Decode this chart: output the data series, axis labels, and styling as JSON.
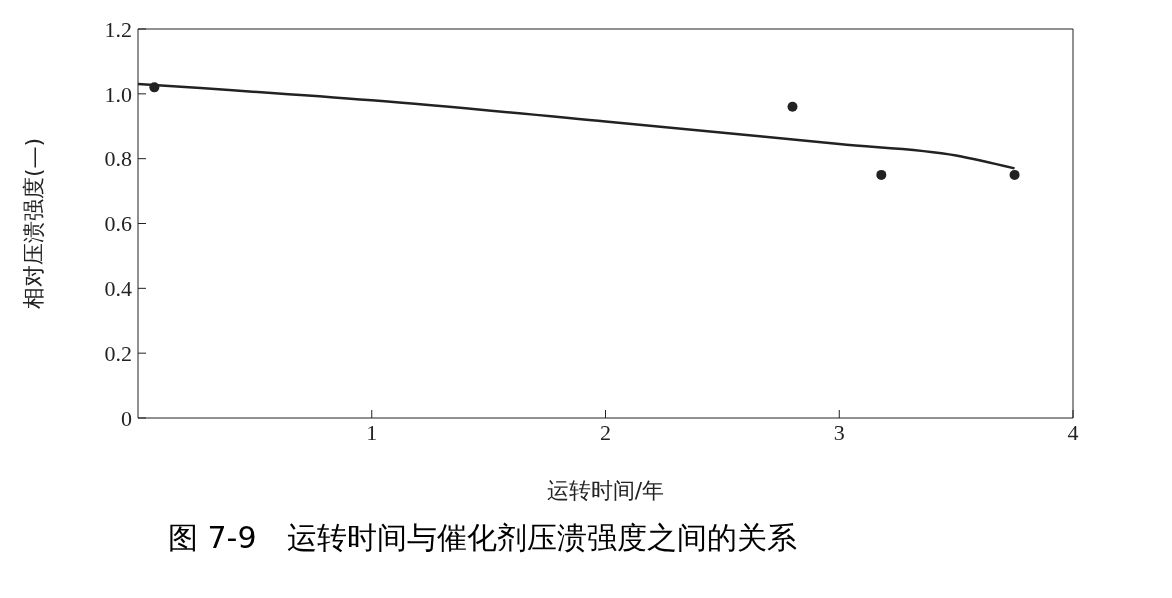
{
  "chart_data": {
    "type": "scatter",
    "title": "图 7-9　运转时间与催化剂压溃强度之间的关系",
    "xlabel": "运转时间/年",
    "ylabel": "相对压溃强度(—)",
    "xlim": [
      0,
      4
    ],
    "xticks": [
      1,
      2,
      3,
      4
    ],
    "ylim": [
      0,
      1.2
    ],
    "yticks": [
      0,
      {
        "value": 0.2,
        "label": "0.2"
      },
      {
        "value": 0.4,
        "label": "0.4"
      },
      {
        "value": 0.6,
        "label": "0.6"
      },
      {
        "value": 0.8,
        "label": "0.8"
      },
      {
        "value": 1,
        "label": "1.0"
      },
      {
        "value": 1.2,
        "label": "1.2"
      }
    ],
    "grid": false,
    "legend": false,
    "series": [
      {
        "color": "#222222",
        "marker": "circle",
        "x": [
          0.07,
          2.8,
          3.18,
          3.75
        ],
        "values": [
          1.02,
          0.96,
          0.75,
          0.75
        ]
      },
      {
        "type": "line",
        "color": "#222222",
        "marker": "none",
        "line_style": "solid",
        "x": [
          0,
          1,
          2,
          3,
          3.5,
          3.75
        ],
        "values": [
          1.03,
          0.98,
          0.915,
          0.845,
          0.81,
          0.77
        ]
      }
    ]
  }
}
